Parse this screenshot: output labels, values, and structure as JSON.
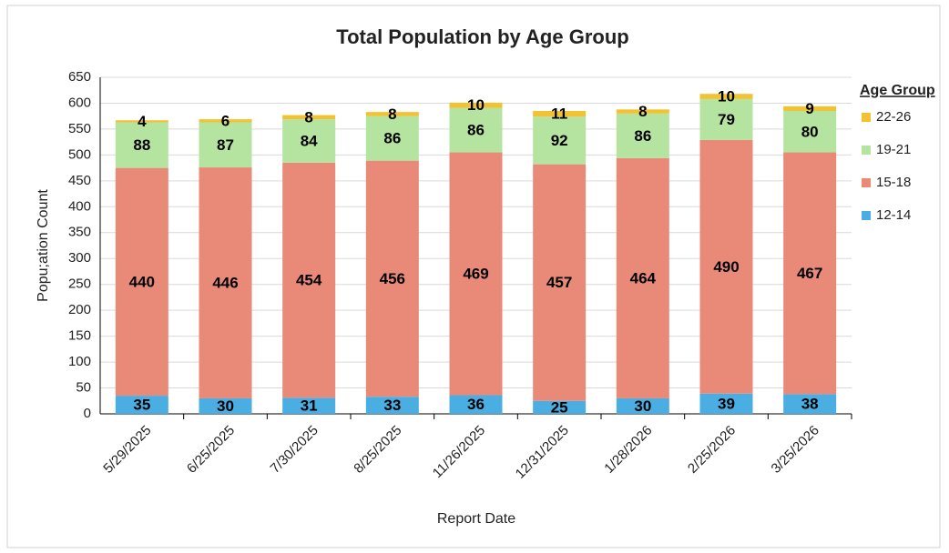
{
  "chart_data": {
    "type": "stacked_bar",
    "title": "Total Population by Age Group",
    "x_label": "Report Date",
    "y_label": "Popu;ation Count",
    "legend_title": "Age Group",
    "legend": "right",
    "grid": true,
    "categories": [
      "5/29/2025",
      "6/25/2025",
      "7/30/2025",
      "8/25/2025",
      "11/26/2025",
      "12/31/2025",
      "1/28/2026",
      "2/25/2026",
      "3/25/2026"
    ],
    "series": [
      {
        "name": "12-14",
        "color": "#4aaee2",
        "values": [
          35,
          30,
          31,
          33,
          36,
          25,
          30,
          39,
          38
        ]
      },
      {
        "name": "15-18",
        "color": "#e98a79",
        "values": [
          440,
          446,
          454,
          456,
          469,
          457,
          464,
          490,
          467
        ]
      },
      {
        "name": "19-21",
        "color": "#b5e4a1",
        "values": [
          88,
          87,
          84,
          86,
          86,
          92,
          86,
          79,
          80
        ]
      },
      {
        "name": "22-26",
        "color": "#f2c233",
        "values": [
          4,
          6,
          8,
          8,
          10,
          11,
          8,
          10,
          9
        ]
      }
    ],
    "ylim": [
      0,
      650
    ],
    "yticks": [
      0,
      50,
      100,
      150,
      200,
      250,
      300,
      350,
      400,
      450,
      500,
      550,
      600,
      650
    ]
  }
}
